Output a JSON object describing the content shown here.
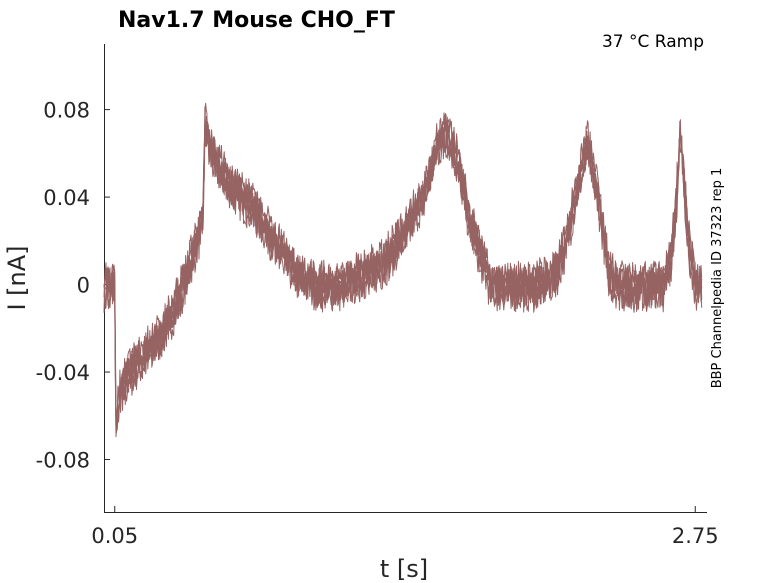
{
  "chart_data": {
    "type": "line",
    "title": "Nav1.7  Mouse  CHO_FT",
    "subtitle": "37 °C  Ramp",
    "xlabel": "t [s]",
    "ylabel": "I [nA]",
    "side_note": "BBP Channelpedia ID 37323 rep 1",
    "xlim": [
      0.0,
      2.8
    ],
    "ylim": [
      -0.104,
      0.11
    ],
    "x_ticks": [
      0.05,
      2.75
    ],
    "x_tick_labels": [
      "0.05",
      "2.75"
    ],
    "y_ticks": [
      0.08,
      0.04,
      0,
      -0.04,
      -0.08
    ],
    "y_tick_labels": [
      "0.08",
      "0.04",
      "0",
      "-0.04",
      "-0.08"
    ],
    "grid": false,
    "line_color": "#966363",
    "series": [
      {
        "x": [
          0.0,
          0.04,
          0.05,
          0.055,
          0.07,
          0.12,
          0.2,
          0.28,
          0.35,
          0.43,
          0.46,
          0.47,
          0.5,
          0.6,
          0.7,
          0.8,
          0.9,
          1.0,
          1.1,
          1.2,
          1.3,
          1.4,
          1.5,
          1.55,
          1.6,
          1.65,
          1.7,
          1.8,
          1.9,
          2.0,
          2.1,
          2.15,
          2.2,
          2.25,
          2.3,
          2.35,
          2.4,
          2.5,
          2.6,
          2.64,
          2.66,
          2.68,
          2.72,
          2.75,
          2.8
        ],
        "values": [
          0.0,
          0.0,
          0.005,
          -0.065,
          -0.05,
          -0.04,
          -0.03,
          -0.02,
          -0.005,
          0.02,
          0.03,
          0.075,
          0.06,
          0.045,
          0.035,
          0.02,
          0.005,
          0.0,
          0.0,
          0.005,
          0.01,
          0.025,
          0.045,
          0.065,
          0.07,
          0.055,
          0.03,
          0.0,
          0.0,
          0.0,
          0.005,
          0.02,
          0.045,
          0.065,
          0.04,
          0.005,
          0.0,
          0.0,
          0.0,
          0.015,
          0.035,
          0.07,
          0.02,
          0.0,
          0.0
        ]
      }
    ]
  }
}
